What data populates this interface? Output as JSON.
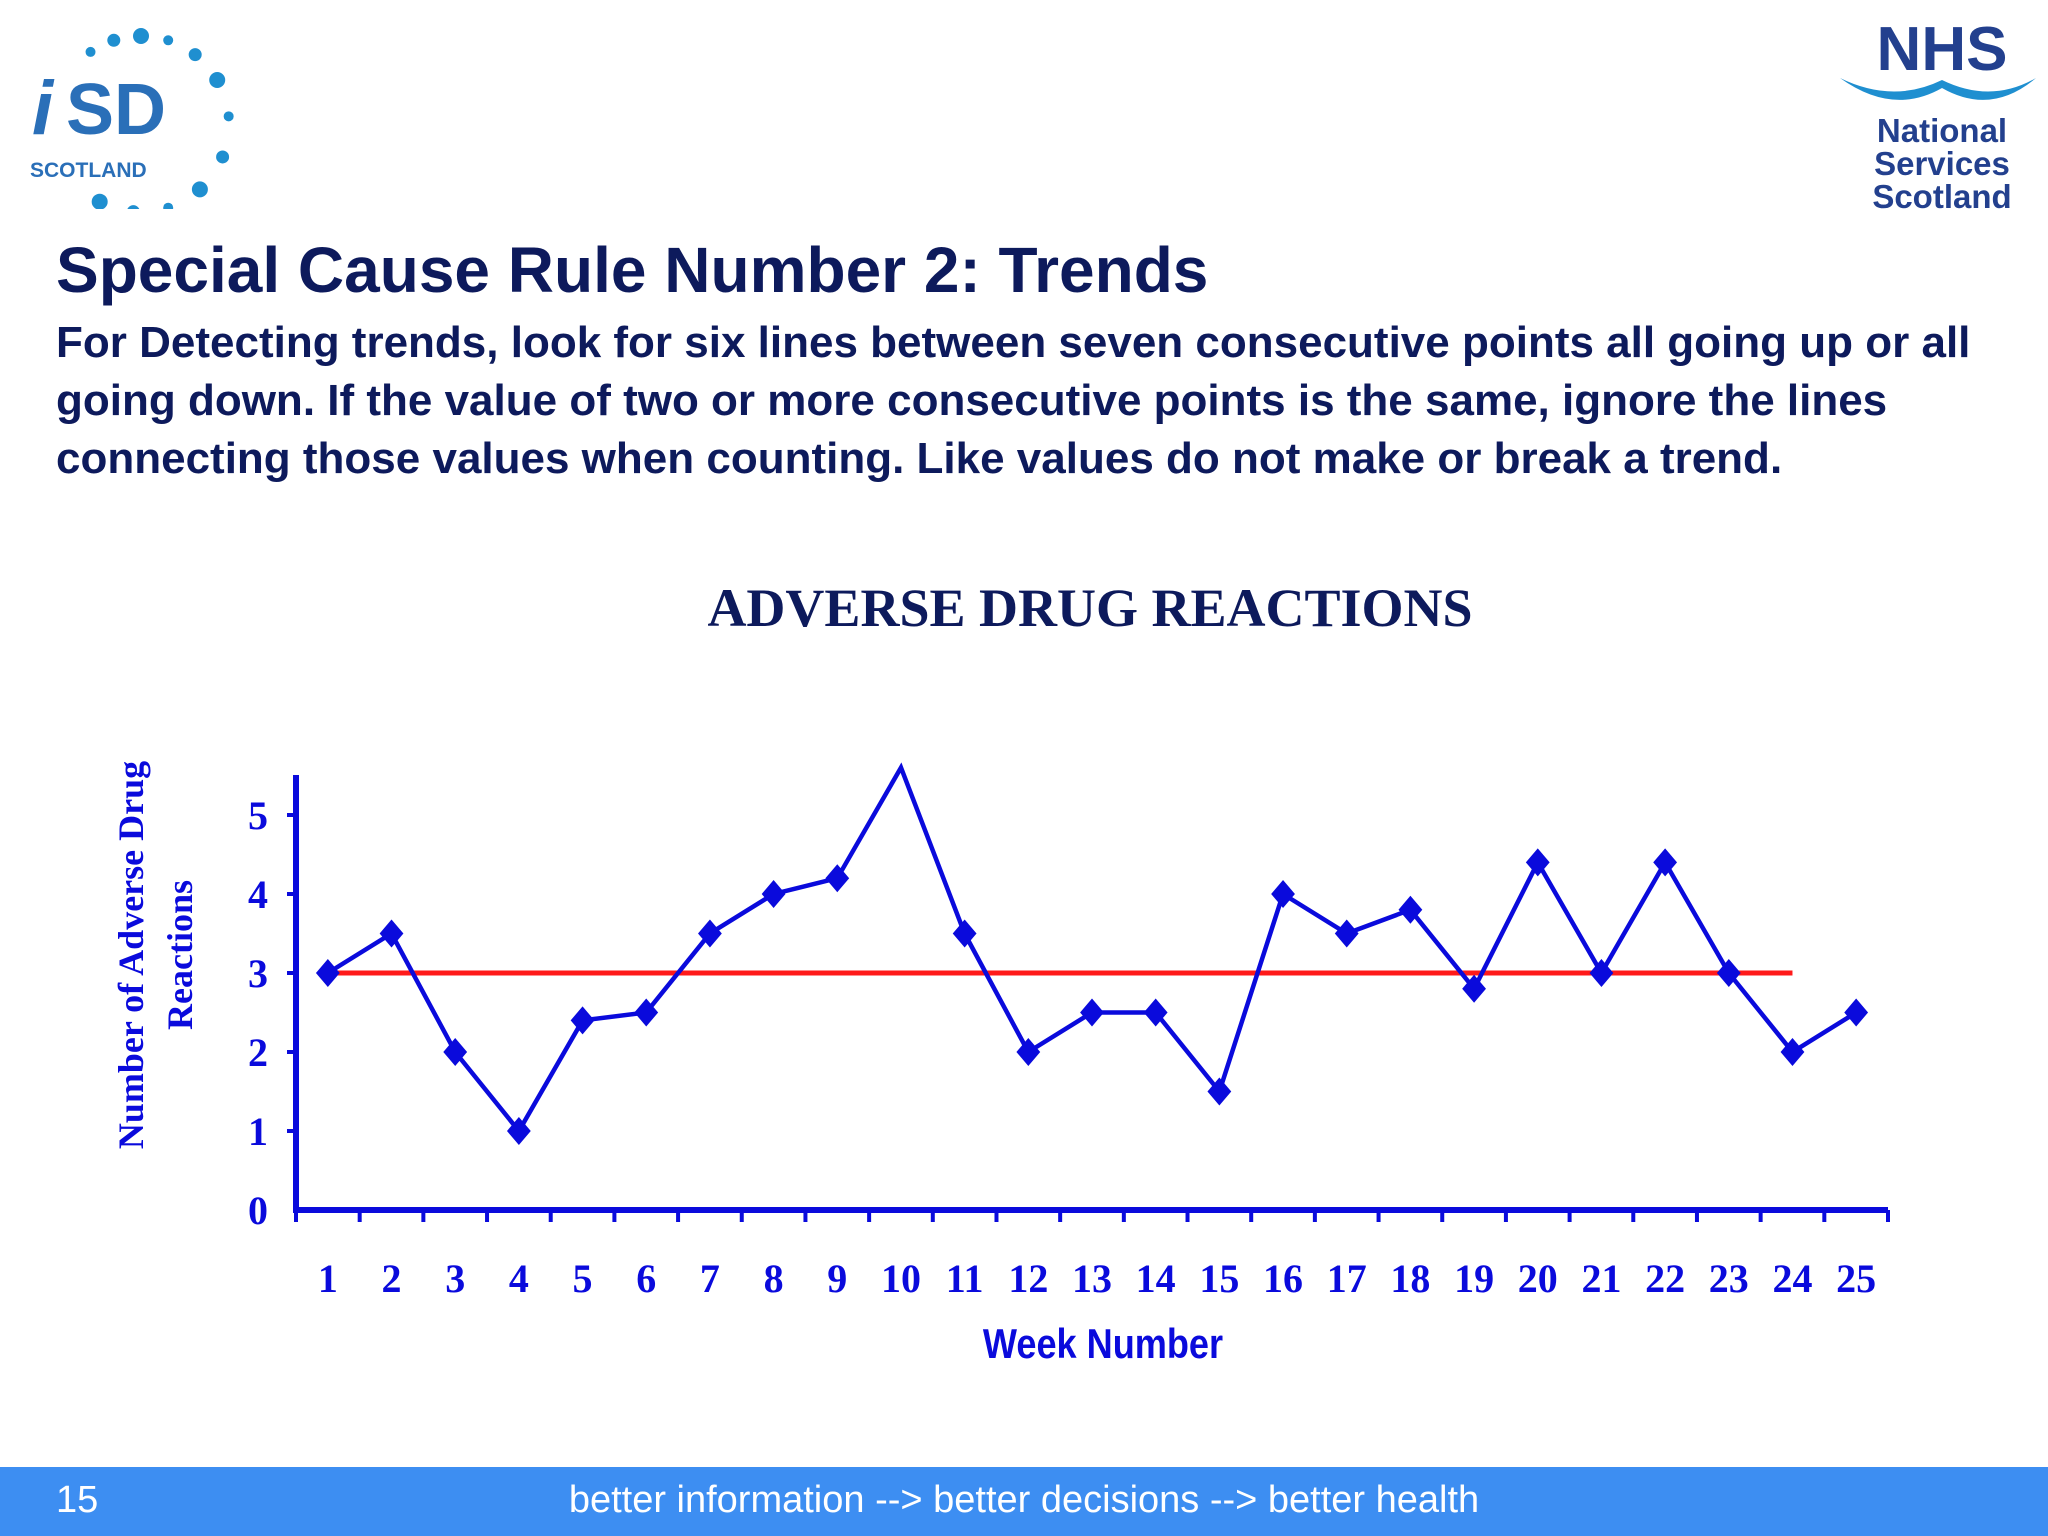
{
  "header": {
    "isd_logo": {
      "main": "SD",
      "sub": "SCOTLAND"
    },
    "nhs_logo": {
      "brand": "NHS",
      "lines": [
        "National",
        "Services",
        "Scotland"
      ]
    }
  },
  "slide": {
    "title": "Special Cause Rule Number 2:  Trends",
    "body": "For Detecting trends, look for six lines between seven consecutive points all going up or all going down.  If the value of two or more consecutive points is the same, ignore the lines connecting those values when counting.  Like values do not make or break a trend."
  },
  "chart_data": {
    "type": "line",
    "title": "ADVERSE DRUG REACTIONS",
    "xlabel": "Week Number",
    "ylabel_lines": [
      "Number of Adverse Drug",
      "Reactions"
    ],
    "x": [
      1,
      2,
      3,
      4,
      5,
      6,
      7,
      8,
      9,
      10,
      11,
      12,
      13,
      14,
      15,
      16,
      17,
      18,
      19,
      20,
      21,
      22,
      23,
      24,
      25
    ],
    "series": [
      {
        "values": [
          3,
          3.5,
          2,
          1,
          2.4,
          2.5,
          3.5,
          4,
          4.2,
          5.6,
          3.5,
          2,
          2.5,
          2.5,
          1.5,
          4,
          3.5,
          3.8,
          2.8,
          4.4,
          3,
          4.4,
          3,
          2,
          2.5
        ],
        "marker": "diamond",
        "markerless_points": [
          10
        ],
        "color": "#0a0adc"
      }
    ],
    "centerline": {
      "value": 3,
      "from_x": 1,
      "to_x": 24,
      "color": "#ff1a1a"
    },
    "yticks": [
      0,
      1,
      2,
      3,
      4,
      5
    ],
    "ylim": [
      0,
      5.6
    ],
    "xlim": [
      0.5,
      25.5
    ],
    "grid": false,
    "legend": false,
    "colors": {
      "axis": "#0a0adc",
      "text": "#0a0adc",
      "title": "#0d1a5c"
    }
  },
  "footer": {
    "slide_number": "15",
    "tagline": "better information --> better decisions --> better health"
  }
}
